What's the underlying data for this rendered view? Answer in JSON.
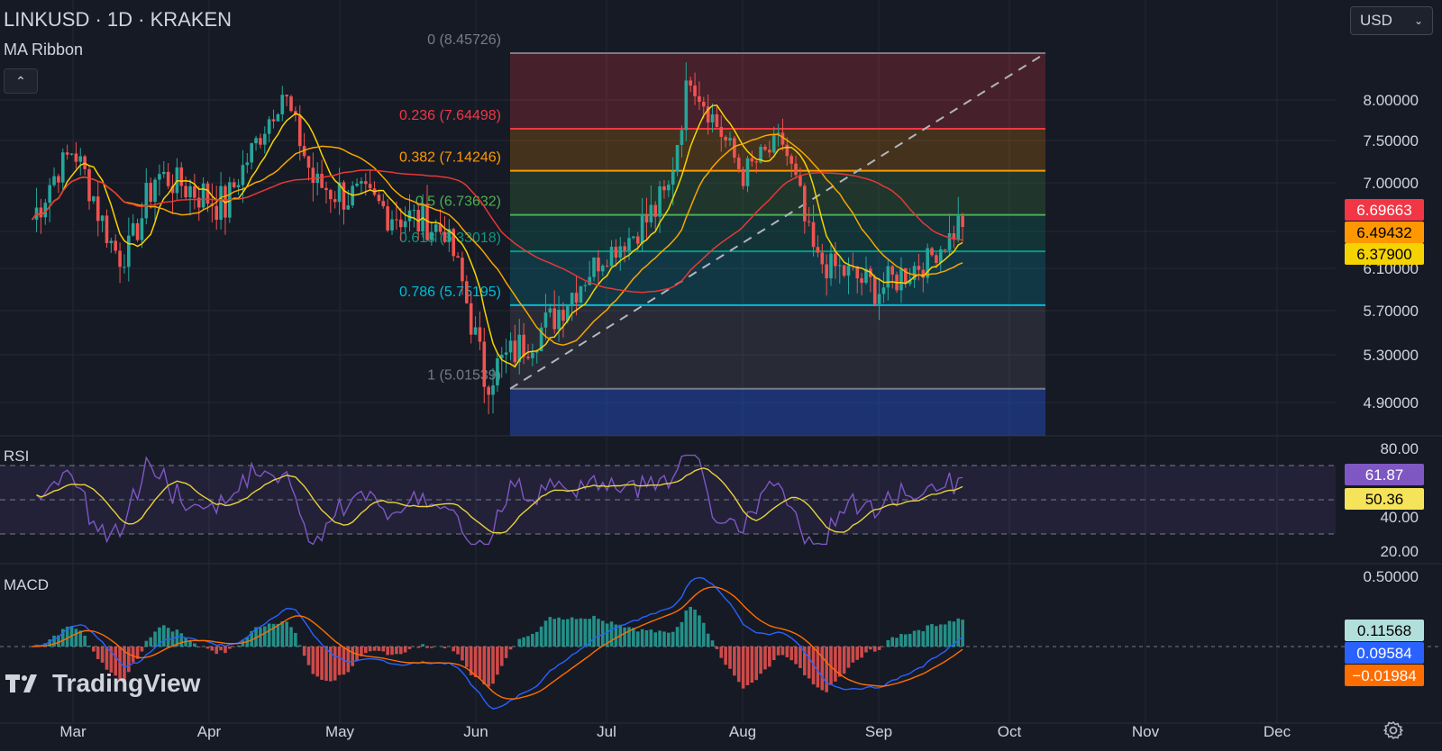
{
  "header": {
    "title": "LINKUSD · 1D · KRAKEN",
    "indicator": "MA Ribbon",
    "currency": "USD"
  },
  "colors": {
    "up": "#26a69a",
    "down": "#ef5350",
    "rsi": "#7e57c2",
    "rsi_ma": "#e8d13a",
    "macd": "#2962ff",
    "signal": "#ff6d00",
    "bg": "#161a25",
    "grid": "#242833"
  },
  "chart_data": [
    {
      "type": "candlestick",
      "ylim": [
        4.62,
        8.52
      ],
      "y_ticks": [
        "8.00000",
        "7.50000",
        "7.00000",
        "6.10000",
        "5.70000",
        "5.30000",
        "4.90000"
      ],
      "x_ticks": [
        "Mar",
        "Apr",
        "May",
        "Jun",
        "Jul",
        "Aug",
        "Sep",
        "Oct",
        "Nov",
        "Dec"
      ],
      "price_badges": [
        "6.69663",
        "6.49432",
        "6.37900"
      ],
      "fib_levels": [
        {
          "label": "0 (8.45726)",
          "value": 8.45726
        },
        {
          "label": "0.236 (7.64498)",
          "value": 7.64498
        },
        {
          "label": "0.382 (7.14246)",
          "value": 7.14246
        },
        {
          "label": "0.5 (6.73632)",
          "value": 6.73632
        },
        {
          "label": "0.618 (6.33018)",
          "value": 6.33018
        },
        {
          "label": "0.786 (5.75195)",
          "value": 5.75195
        },
        {
          "label": "1 (5.01539)",
          "value": 5.01539
        }
      ],
      "key_points": [
        {
          "date": "Feb 20",
          "close": 6.7
        },
        {
          "date": "Mar 01",
          "close": 7.4
        },
        {
          "date": "Mar 12",
          "close": 6.2
        },
        {
          "date": "Mar 20",
          "close": 7.1
        },
        {
          "date": "Apr 05",
          "close": 6.8
        },
        {
          "date": "Apr 18",
          "close": 8.1
        },
        {
          "date": "Apr 25",
          "close": 7.0
        },
        {
          "date": "May 10",
          "close": 6.8
        },
        {
          "date": "May 25",
          "close": 6.6
        },
        {
          "date": "Jun 03",
          "close": 5.1
        },
        {
          "date": "Jun 18",
          "close": 5.6
        },
        {
          "date": "Jul 01",
          "close": 6.3
        },
        {
          "date": "Jul 15",
          "close": 6.9
        },
        {
          "date": "Jul 20",
          "close": 8.3
        },
        {
          "date": "Aug 01",
          "close": 7.1
        },
        {
          "date": "Aug 10",
          "close": 7.5
        },
        {
          "date": "Aug 18",
          "close": 6.2
        },
        {
          "date": "Sep 01",
          "close": 5.9
        },
        {
          "date": "Sep 12",
          "close": 6.2
        },
        {
          "date": "Sep 21",
          "close": 6.75
        }
      ]
    },
    {
      "type": "line",
      "name": "RSI",
      "ylim": [
        20,
        80
      ],
      "y_ticks": [
        "80.00",
        "40.00",
        "20.00"
      ],
      "badges": [
        "61.87",
        "50.36"
      ]
    },
    {
      "type": "line",
      "name": "MACD",
      "y_ticks": [
        "0.50000"
      ],
      "badges": [
        "0.11568",
        "0.09584",
        "−0.01984"
      ]
    }
  ],
  "footer": {
    "logo_text": "TradingView"
  }
}
